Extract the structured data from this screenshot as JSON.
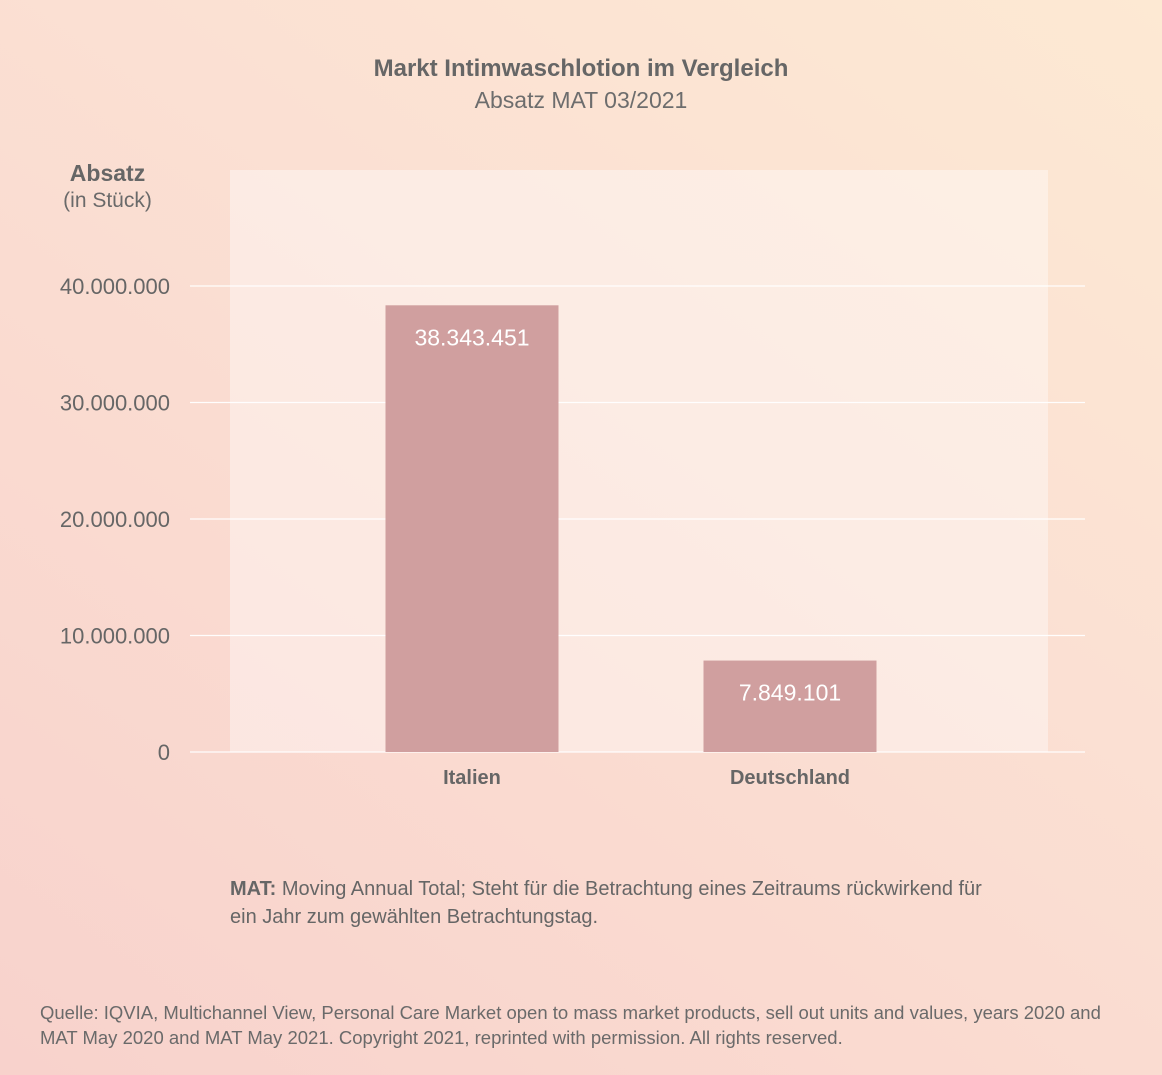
{
  "chart_data": {
    "type": "bar",
    "title": "Markt Intimwaschlotion im Vergleich",
    "subtitle": "Absatz MAT 03/2021",
    "ylabel": "Absatz",
    "ylabel_unit": "(in Stück)",
    "xlabel": "",
    "categories": [
      "Italien",
      "Deutschland"
    ],
    "values": [
      38343451,
      7849101
    ],
    "value_labels": [
      "38.343.451",
      "7.849.101"
    ],
    "ylim": [
      0,
      40000000
    ],
    "yticks": [
      0,
      10000000,
      20000000,
      30000000,
      40000000
    ],
    "ytick_labels": [
      "0",
      "10.000.000",
      "20.000.000",
      "30.000.000",
      "40.000.000"
    ],
    "grid": true,
    "bar_color": "#d09f9f"
  },
  "note": {
    "term": "MAT:",
    "text": "Moving Annual Total; Steht für die Betrachtung eines Zeitraums rückwirkend für ein Jahr zum gewählten Betrachtungstag."
  },
  "source": "Quelle: IQVIA, Multichannel View, Personal Care Market open to mass market products, sell out units and values, years 2020 and MAT May 2020 and MAT May 2021. Copyright 2021, reprinted with permission. All rights reserved."
}
